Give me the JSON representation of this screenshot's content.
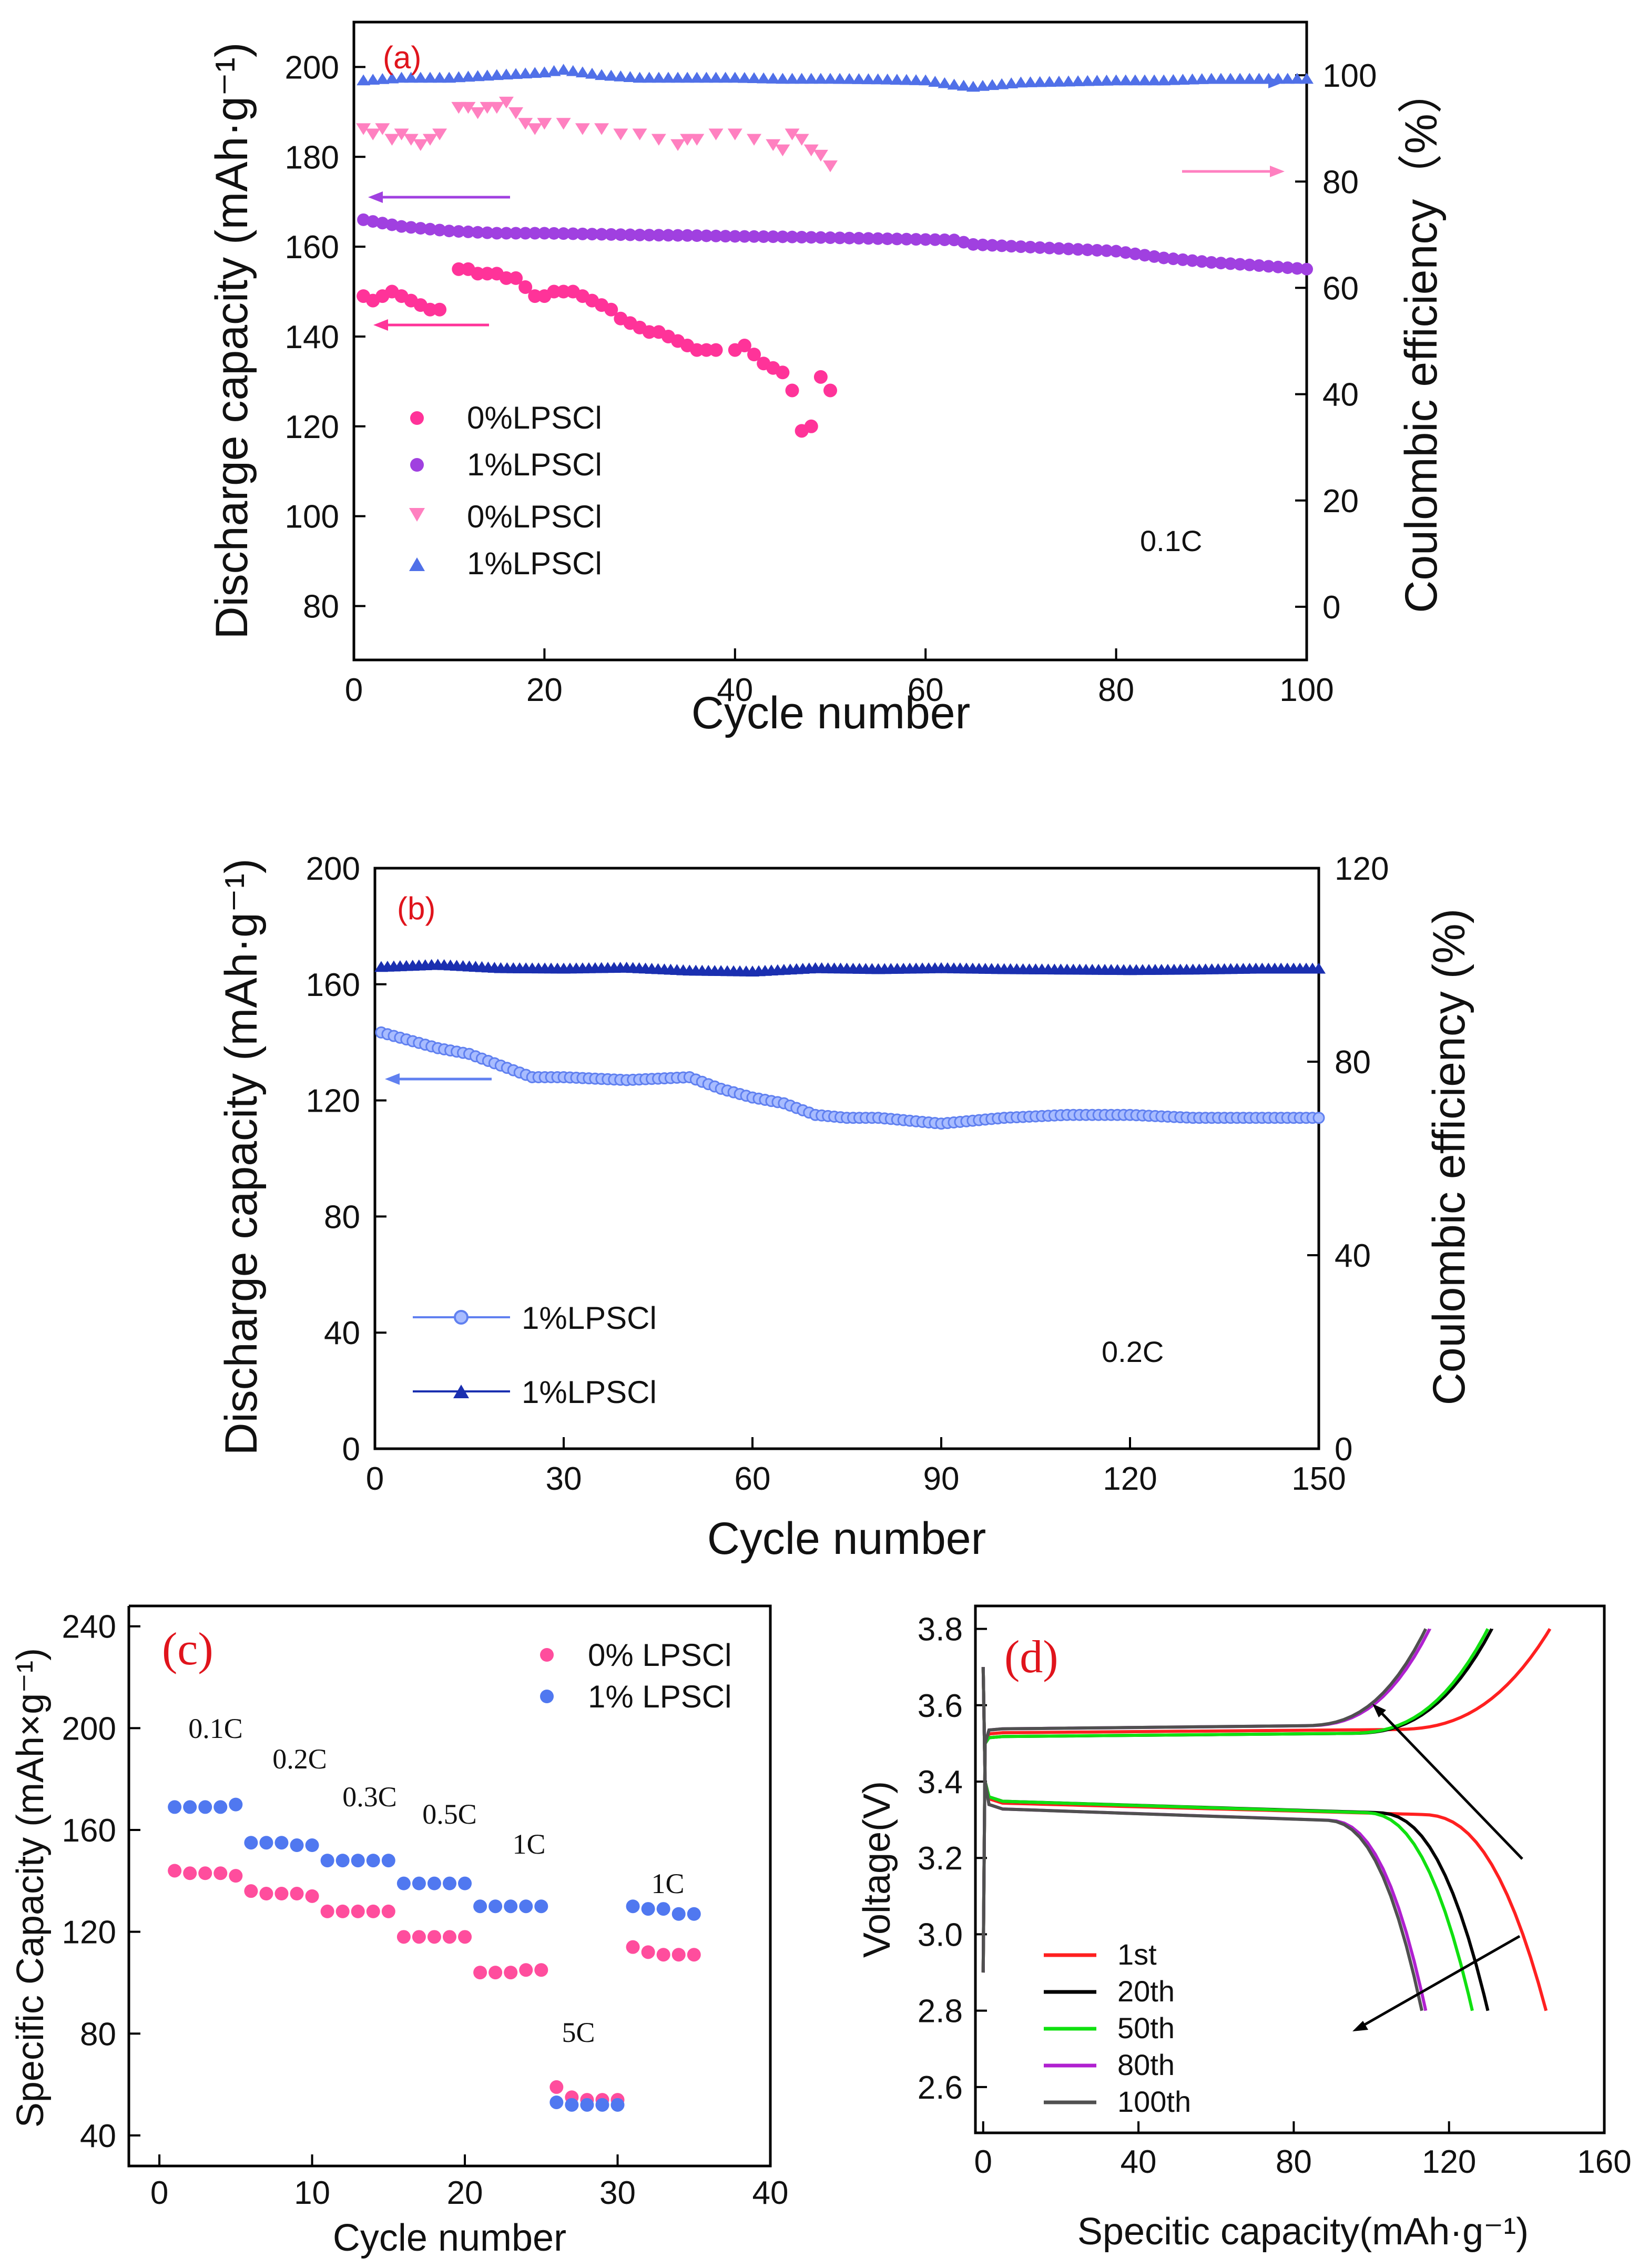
{
  "chart_data": [
    {
      "panel": "(a)",
      "type": "scatter",
      "xlabel": "Cycle number",
      "ylabel": "Discharge capacity (mAh·g⁻¹)",
      "y2label": "Coulombic efficiency（%）",
      "xlim": [
        0,
        100
      ],
      "ylim": [
        68,
        210
      ],
      "y2lim": [
        -10,
        110
      ],
      "xticks": [
        "0",
        "20",
        "40",
        "60",
        "80",
        "100"
      ],
      "yticks": [
        "80",
        "100",
        "120",
        "140",
        "160",
        "180",
        "200"
      ],
      "y2ticks": [
        "0",
        "20",
        "40",
        "60",
        "80",
        "100"
      ],
      "annotation": "0.1C",
      "colors": {
        "pink_circle": "#ff3399",
        "purple_circle": "#a040e0",
        "pink_tri": "#ff80c0",
        "blue_tri": "#5070e8"
      },
      "series": [
        {
          "name": "0%LPSCl",
          "marker": "circle",
          "axis": "left",
          "color": "#ff3399",
          "x": [
            1,
            2,
            3,
            4,
            5,
            6,
            7,
            8,
            9,
            11,
            12,
            13,
            14,
            15,
            16,
            17,
            18,
            19,
            20,
            21,
            22,
            23,
            24,
            25,
            26,
            27,
            28,
            29,
            30,
            31,
            32,
            33,
            34,
            35,
            36,
            37,
            38,
            40,
            41,
            42,
            43,
            44,
            45,
            46,
            47,
            48,
            49,
            50
          ],
          "y": [
            149,
            148,
            149,
            150,
            149,
            148,
            147,
            146,
            146,
            155,
            155,
            154,
            154,
            154,
            153,
            153,
            151,
            149,
            149,
            150,
            150,
            150,
            149,
            148,
            147,
            146,
            144,
            143,
            142,
            141,
            141,
            140,
            139,
            138,
            137,
            137,
            137,
            137,
            138,
            136,
            134,
            133,
            132,
            128,
            119,
            120,
            131,
            128
          ]
        },
        {
          "name": "1%LPSCl",
          "marker": "circle",
          "axis": "left",
          "color": "#a040e0",
          "x": [
            1,
            5,
            10,
            15,
            20,
            25,
            30,
            35,
            40,
            45,
            50,
            55,
            60,
            63,
            65,
            70,
            75,
            80,
            85,
            90,
            95,
            100
          ],
          "y": [
            166,
            164.5,
            163.5,
            163,
            163,
            162.8,
            162.6,
            162.5,
            162.3,
            162.2,
            162,
            161.8,
            161.6,
            161.5,
            160.5,
            160,
            159.5,
            159,
            157.5,
            156.5,
            155.8,
            155
          ]
        },
        {
          "name": "0%LPSCl",
          "marker": "triangle-down",
          "axis": "right",
          "color": "#ff80c0",
          "x": [
            1,
            2,
            3,
            4,
            5,
            6,
            7,
            8,
            9,
            11,
            12,
            13,
            14,
            15,
            16,
            17,
            18,
            19,
            20,
            22,
            24,
            26,
            28,
            30,
            32,
            34,
            35,
            36,
            38,
            40,
            42,
            44,
            45,
            46,
            47,
            48,
            49,
            50
          ],
          "y": [
            90,
            89,
            90,
            88,
            89,
            88,
            87,
            88,
            89,
            94,
            94,
            93,
            94,
            94,
            95,
            93,
            91,
            90,
            91,
            91,
            90,
            90,
            89,
            89,
            88,
            87,
            88,
            88,
            89,
            89,
            88,
            87,
            86,
            89,
            88,
            86,
            85,
            83
          ]
        },
        {
          "name": "1%LPSCl",
          "marker": "triangle",
          "axis": "right",
          "color": "#5070e8",
          "x": [
            1,
            5,
            10,
            15,
            20,
            22,
            24,
            26,
            30,
            35,
            40,
            45,
            50,
            55,
            60,
            63,
            65,
            70,
            75,
            80,
            85,
            90,
            95,
            100
          ],
          "y": [
            99,
            99.5,
            99.5,
            100,
            100.5,
            101,
            100.5,
            100,
            99.5,
            99.5,
            99.5,
            99.3,
            99.3,
            99.2,
            99,
            98.2,
            97.8,
            98.6,
            98.8,
            99,
            99,
            99.3,
            99.3,
            99.3
          ]
        }
      ]
    },
    {
      "panel": "(b)",
      "type": "line",
      "xlabel": "Cycle number",
      "ylabel": "Discharge capacity (mAh·g⁻¹)",
      "y2label": "Coulombic efficiency (%)",
      "xlim": [
        0,
        150
      ],
      "ylim": [
        0,
        200
      ],
      "y2lim": [
        0,
        120
      ],
      "xticks": [
        "0",
        "30",
        "60",
        "90",
        "120",
        "150"
      ],
      "yticks": [
        "0",
        "40",
        "80",
        "120",
        "160",
        "200"
      ],
      "y2ticks": [
        "0",
        "40",
        "80",
        "120"
      ],
      "annotation": "0.2C",
      "colors": {
        "capacity": "#6080f0",
        "efficiency": "#1a2fb0"
      },
      "series": [
        {
          "name": "1%LPSCl",
          "marker": "circle",
          "axis": "left",
          "color": "#6080f0",
          "x": [
            0,
            5,
            10,
            15,
            20,
            25,
            30,
            40,
            50,
            55,
            60,
            65,
            70,
            75,
            80,
            85,
            90,
            95,
            100,
            110,
            120,
            130,
            140,
            150
          ],
          "y": [
            144,
            141,
            138,
            136,
            132,
            128,
            128,
            127,
            128,
            124,
            121,
            119,
            115,
            114,
            114,
            113,
            112,
            113,
            114,
            115,
            115,
            114,
            114,
            114
          ]
        },
        {
          "name": "1%LPSCl",
          "marker": "triangle",
          "axis": "right",
          "color": "#1a2fb0",
          "x": [
            0,
            10,
            20,
            30,
            40,
            50,
            60,
            70,
            80,
            90,
            100,
            110,
            120,
            130,
            140,
            150
          ],
          "y": [
            99.5,
            100,
            99.3,
            99.2,
            99.4,
            98.8,
            98.6,
            99.3,
            99.1,
            99.3,
            99.1,
            99,
            98.9,
            99,
            99.2,
            99.2
          ]
        }
      ]
    },
    {
      "panel": "(c)",
      "type": "scatter",
      "xlabel": "Cycle number",
      "ylabel": "Specific Capacity (mAh×g⁻¹)",
      "xlim": [
        -2,
        40
      ],
      "ylim": [
        28,
        248
      ],
      "xticks": [
        "0",
        "10",
        "20",
        "30",
        "40"
      ],
      "yticks": [
        "40",
        "80",
        "120",
        "160",
        "200",
        "240"
      ],
      "rate_labels": [
        "0.1C",
        "0.2C",
        "0.3C",
        "0.5C",
        "1C",
        "5C",
        "1C"
      ],
      "colors": {
        "zero": "#ff4d9d",
        "one": "#5078f0"
      },
      "series": [
        {
          "name": "0% LPSCl",
          "color": "#ff4d9d",
          "x": [
            1,
            2,
            3,
            4,
            5,
            6,
            7,
            8,
            9,
            10,
            11,
            12,
            13,
            14,
            15,
            16,
            17,
            18,
            19,
            20,
            21,
            22,
            23,
            24,
            25,
            26,
            27,
            28,
            29,
            30,
            31,
            32,
            33,
            34,
            35
          ],
          "y": [
            144,
            143,
            143,
            143,
            142,
            136,
            135,
            135,
            135,
            134,
            128,
            128,
            128,
            128,
            128,
            118,
            118,
            118,
            118,
            118,
            104,
            104,
            104,
            105,
            105,
            59,
            55,
            54,
            54,
            54,
            114,
            112,
            111,
            111,
            111
          ]
        },
        {
          "name": "1% LPSCl",
          "color": "#5078f0",
          "x": [
            1,
            2,
            3,
            4,
            5,
            6,
            7,
            8,
            9,
            10,
            11,
            12,
            13,
            14,
            15,
            16,
            17,
            18,
            19,
            20,
            21,
            22,
            23,
            24,
            25,
            26,
            27,
            28,
            29,
            30,
            31,
            32,
            33,
            34,
            35
          ],
          "y": [
            169,
            169,
            169,
            169,
            170,
            155,
            155,
            155,
            154,
            154,
            148,
            148,
            148,
            148,
            148,
            139,
            139,
            139,
            139,
            139,
            130,
            130,
            130,
            130,
            130,
            53,
            52,
            52,
            52,
            52,
            130,
            129,
            129,
            127,
            127
          ]
        }
      ]
    },
    {
      "panel": "(d)",
      "type": "line",
      "xlabel": "Specitic capacity(mAh·g⁻¹)",
      "ylabel": "Voltage(V)",
      "xlim": [
        -2,
        160
      ],
      "ylim": [
        2.48,
        3.86
      ],
      "xticks": [
        "0",
        "40",
        "80",
        "120",
        "160"
      ],
      "yticks": [
        "2.6",
        "2.8",
        "3.0",
        "3.2",
        "3.4",
        "3.6",
        "3.8"
      ],
      "series": [
        {
          "name": "1st",
          "color": "#ff2020",
          "charge_end": 146,
          "discharge_end": 145,
          "plateau_charge": 3.53,
          "plateau_discharge": 3.345
        },
        {
          "name": "20th",
          "color": "#000000",
          "charge_end": 131,
          "discharge_end": 130,
          "plateau_charge": 3.52,
          "plateau_discharge": 3.35
        },
        {
          "name": "50th",
          "color": "#10e010",
          "charge_end": 130,
          "discharge_end": 126,
          "plateau_charge": 3.52,
          "plateau_discharge": 3.35
        },
        {
          "name": "80th",
          "color": "#b020d0",
          "charge_end": 115,
          "discharge_end": 114,
          "plateau_charge": 3.54,
          "plateau_discharge": 3.33
        },
        {
          "name": "100th",
          "color": "#505050",
          "charge_end": 114,
          "discharge_end": 113,
          "plateau_charge": 3.54,
          "plateau_discharge": 3.33
        }
      ]
    }
  ]
}
